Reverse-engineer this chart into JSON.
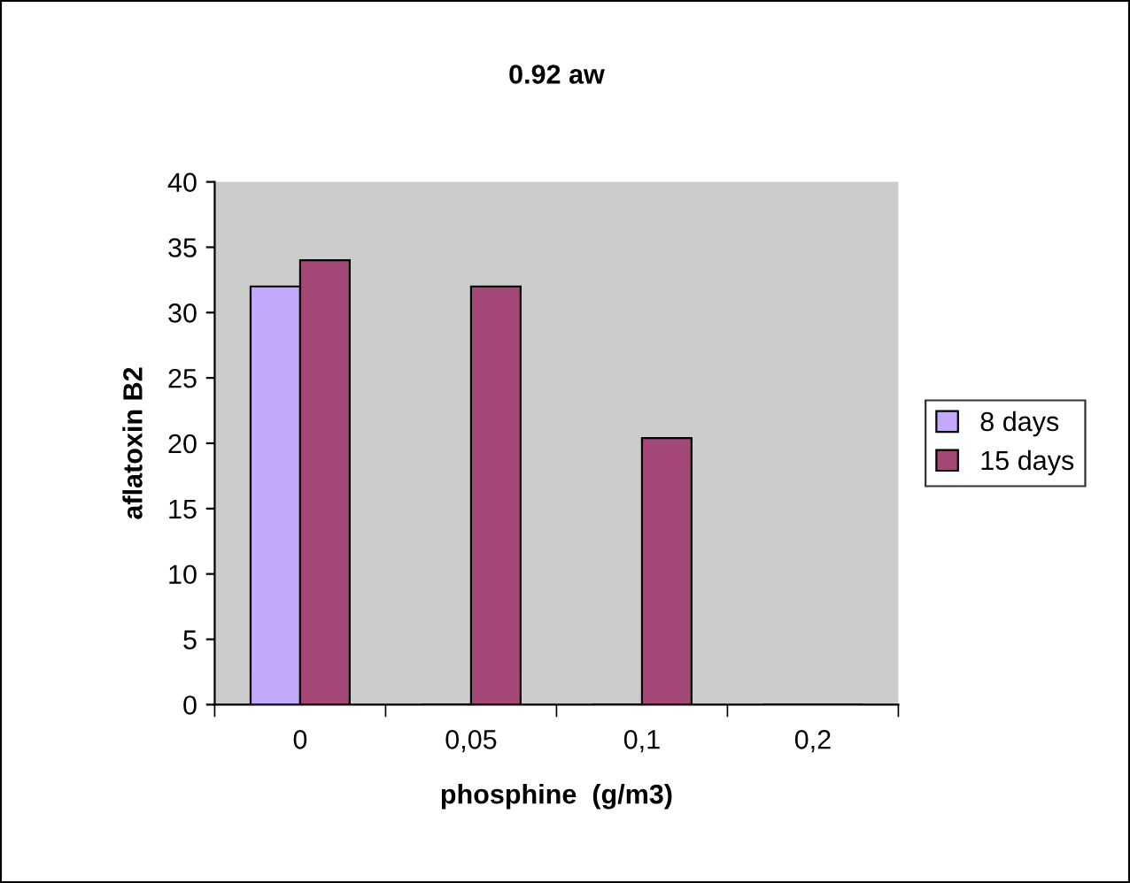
{
  "chart_data": {
    "type": "bar",
    "title": "0.92 aw",
    "xlabel": "phosphine  (g/m3)",
    "ylabel": "aflatoxin B2",
    "categories": [
      "0",
      "0,05",
      "0,1",
      "0,2"
    ],
    "series": [
      {
        "name": "8 days",
        "color": "#c4a8fc",
        "values": [
          32,
          0,
          0,
          0
        ]
      },
      {
        "name": "15 days",
        "color": "#a34877",
        "values": [
          34,
          32,
          20.4,
          0
        ]
      }
    ],
    "ylim": [
      0,
      40
    ],
    "yticks": [
      0,
      5,
      10,
      15,
      20,
      25,
      30,
      35,
      40
    ],
    "grid": false,
    "legend": "right"
  }
}
